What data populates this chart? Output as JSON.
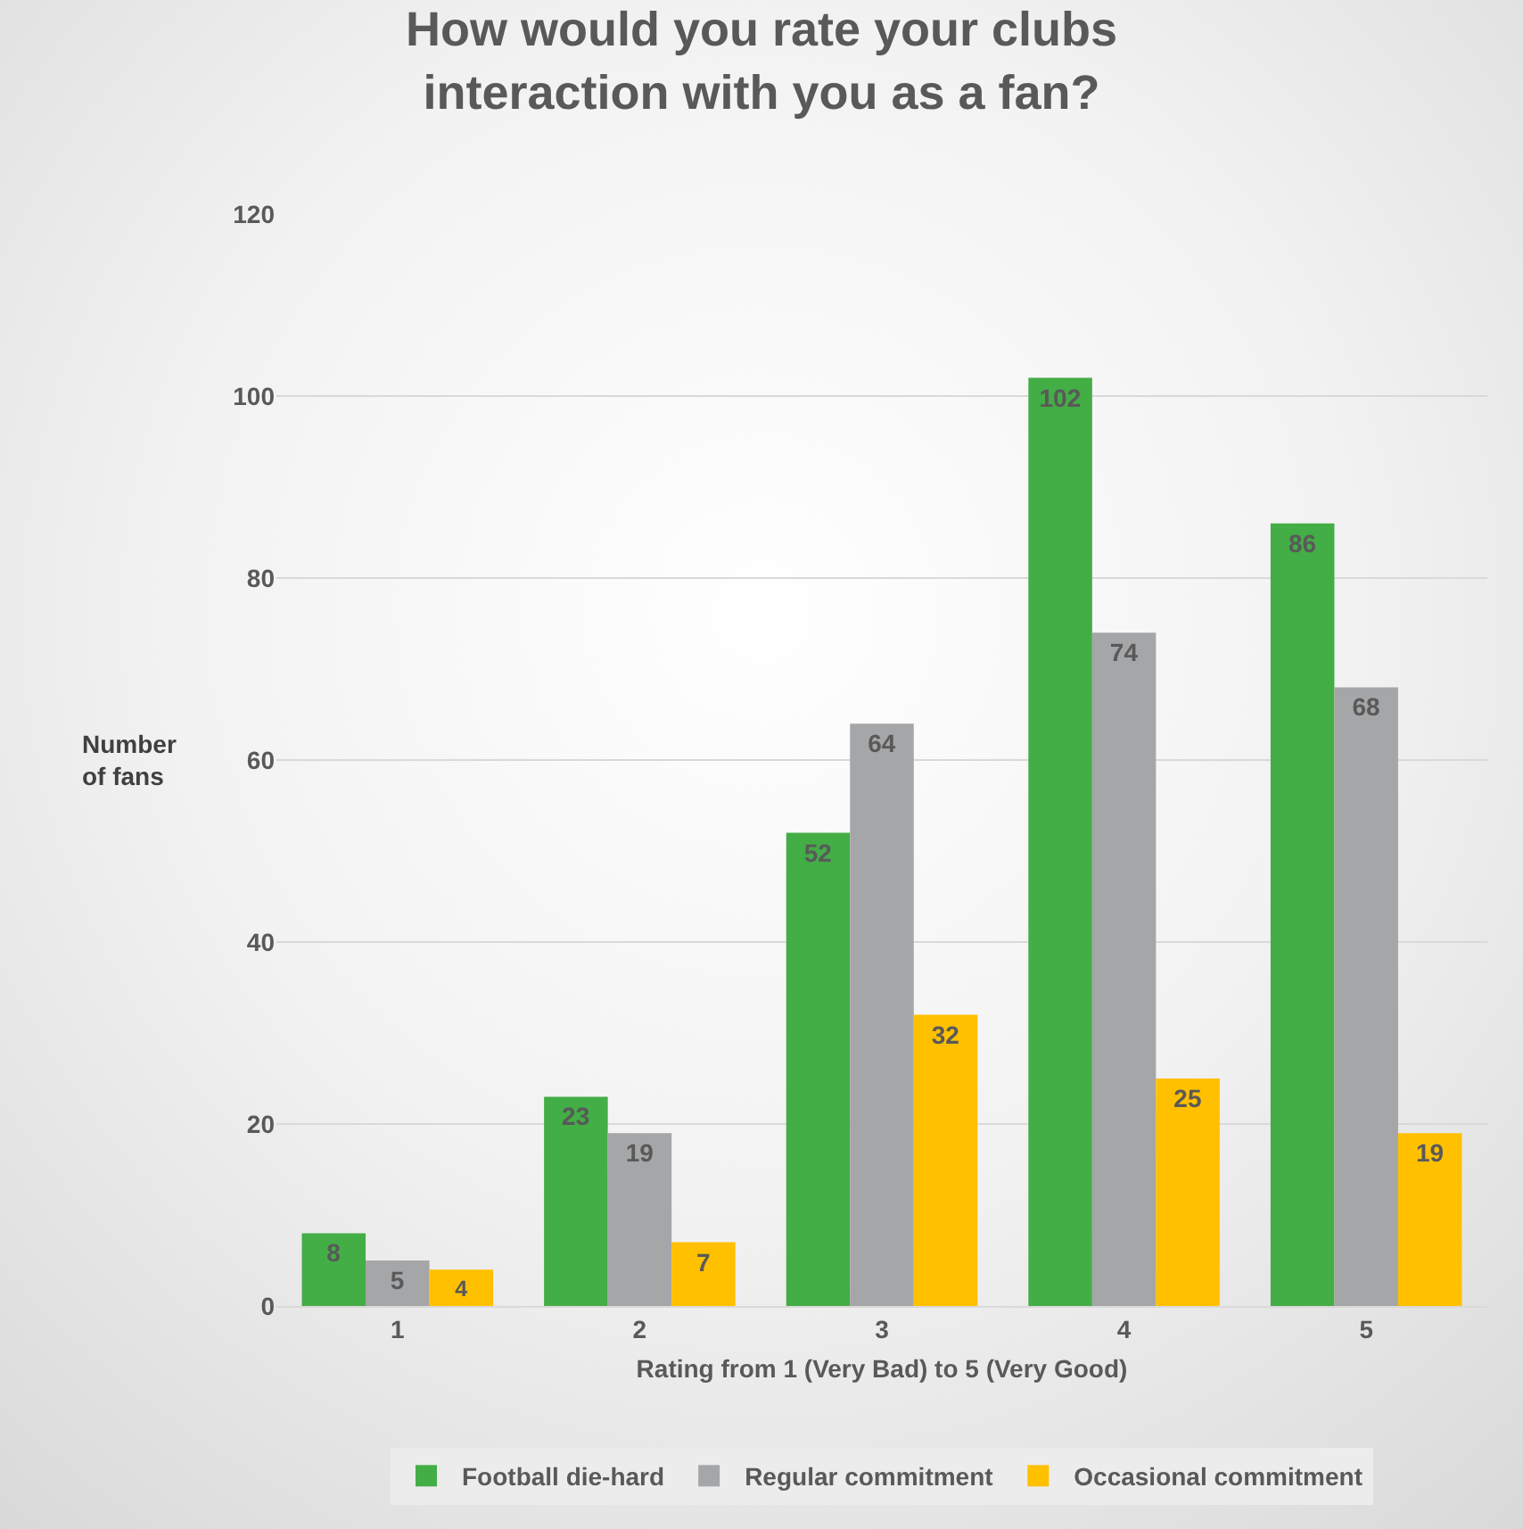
{
  "chart_data": {
    "type": "bar",
    "title": "How would you rate your clubs interaction with you as a fan?",
    "xlabel": "Rating from 1 (Very Bad) to 5 (Very Good)",
    "ylabel": "Number of fans",
    "categories": [
      "1",
      "2",
      "3",
      "4",
      "5"
    ],
    "series": [
      {
        "name": "Football die-hard",
        "color": "#43ad46",
        "values": [
          8,
          23,
          52,
          102,
          86
        ]
      },
      {
        "name": "Regular commitment",
        "color": "#a5a6a8",
        "values": [
          5,
          19,
          64,
          74,
          68
        ]
      },
      {
        "name": "Occasional commitment",
        "color": "#ffc000",
        "values": [
          4,
          7,
          32,
          25,
          19
        ]
      }
    ],
    "ylim": [
      0,
      120
    ],
    "yticks": [
      0,
      20,
      40,
      60,
      80,
      100,
      120
    ],
    "grid": "y",
    "legend": "bottom",
    "data_labels": true
  }
}
